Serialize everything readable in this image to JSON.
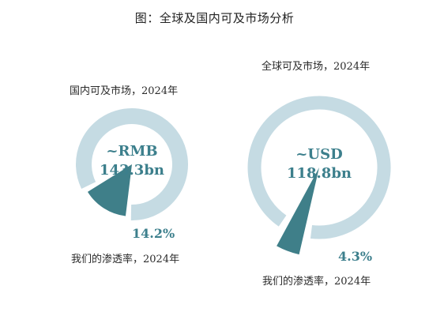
{
  "title": "图：全球及国内可及市场分析",
  "chart_data": [
    {
      "type": "pie",
      "title": "国内可及市场，2024年",
      "center_value": "~RMB",
      "center_sub": "143.3bn",
      "penetration_label": "我们的渗透率，2024年",
      "penetration_percent": 14.2,
      "percent_label": "14.2%",
      "colors": {
        "ring": "#c5dbe3",
        "slice": "#3f7f89",
        "center_text": "#3c7f8c"
      }
    },
    {
      "type": "pie",
      "title": "全球可及市场，2024年",
      "center_value": "~USD",
      "center_sub": "118.8bn",
      "penetration_label": "我们的渗透率，2024年",
      "penetration_percent": 4.3,
      "percent_label": "4.3%",
      "colors": {
        "ring": "#c5dbe3",
        "slice": "#3f7f89",
        "center_text": "#3c7f8c"
      }
    }
  ]
}
